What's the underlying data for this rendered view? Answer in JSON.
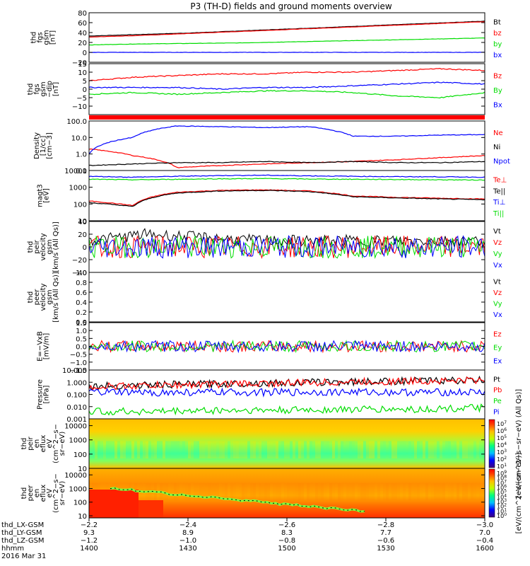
{
  "title": "P3 (TH-D) fields and ground moments overview",
  "colors": {
    "black": "#000000",
    "red": "#ff0000",
    "green": "#00dd00",
    "blue": "#0000ff",
    "spec_bg": "#ffbf00",
    "spec_hot": "#ff3300"
  },
  "chart_data": [
    {
      "type": "line",
      "ylabel": [
        "thd",
        "fgs",
        "gsm",
        "[nT]"
      ],
      "yticks": [
        "80",
        "60",
        "40",
        "20",
        "0",
        "−20"
      ],
      "ylim": [
        -20,
        80
      ],
      "series": [
        {
          "name": "Bt",
          "color": "#000000",
          "values": [
            33,
            36,
            39,
            43,
            47,
            51,
            55,
            59,
            63
          ]
        },
        {
          "name": "bz",
          "color": "#ff0000",
          "values": [
            31,
            34,
            38,
            42,
            46,
            50,
            54,
            58,
            62
          ]
        },
        {
          "name": "by",
          "color": "#00dd00",
          "values": [
            15,
            17,
            18,
            19,
            21,
            23,
            25,
            27,
            29
          ]
        },
        {
          "name": "bx",
          "color": "#0000ff",
          "values": [
            0,
            0,
            0,
            0,
            0,
            0,
            0,
            0,
            0
          ]
        }
      ]
    },
    {
      "type": "line",
      "ylabel": [
        "thd",
        "fgs",
        "gsm",
        "−dip",
        "[nT]"
      ],
      "yticks": [
        "15",
        "10",
        "5",
        "0",
        "−5",
        "−10"
      ],
      "ylim": [
        -15,
        15
      ],
      "series": [
        {
          "name": "Bz",
          "color": "#ff0000",
          "values": [
            5,
            7,
            8,
            9,
            9,
            10,
            10,
            11,
            12,
            11
          ]
        },
        {
          "name": "By",
          "color": "#00dd00",
          "values": [
            -3,
            -2,
            -3,
            -2,
            -1,
            -1,
            -2,
            -4,
            -5,
            -2
          ]
        },
        {
          "name": "Bx",
          "color": "#0000ff",
          "values": [
            1,
            1,
            1,
            0,
            1,
            1,
            2,
            3,
            4,
            3
          ]
        }
      ]
    },
    {
      "type": "line",
      "log": true,
      "ylabel": [
        "Density",
        "[1/cc]",
        "[cm−3]"
      ],
      "yticks": [
        "100.0",
        "10.0",
        "1.0",
        "0.1"
      ],
      "ylim": [
        0.1,
        100
      ],
      "series": [
        {
          "name": "Ne",
          "color": "#ff0000",
          "values": [
            2,
            0.8,
            0.15,
            0.2,
            0.25,
            0.3,
            0.35,
            0.45,
            0.6,
            0.8
          ]
        },
        {
          "name": "Ni",
          "color": "#000000",
          "values": [
            0.2,
            0.25,
            0.3,
            0.3,
            0.35,
            0.3,
            0.35,
            0.3,
            0.3,
            0.35
          ]
        },
        {
          "name": "Npot",
          "color": "#0000ff",
          "values": [
            1,
            10,
            50,
            45,
            40,
            45,
            12,
            12,
            14,
            15
          ]
        }
      ]
    },
    {
      "type": "line",
      "log": true,
      "ylabel": [
        "magt3",
        "[eV]"
      ],
      "yticks": [
        "10000",
        "1000",
        "100",
        "10"
      ],
      "ylim": [
        10,
        10000
      ],
      "series": [
        {
          "name": "Te⊥",
          "color": "#ff0000",
          "values": [
            150,
            80,
            500,
            650,
            700,
            600,
            300,
            250,
            220,
            200
          ]
        },
        {
          "name": "Te||",
          "color": "#000000",
          "values": [
            120,
            70,
            450,
            600,
            650,
            550,
            270,
            230,
            200,
            180
          ]
        },
        {
          "name": "Ti⊥",
          "color": "#0000ff",
          "values": [
            4500,
            4000,
            4500,
            5000,
            5200,
            4800,
            4500,
            4300,
            4200,
            4000
          ]
        },
        {
          "name": "Ti||",
          "color": "#00dd00",
          "values": [
            3000,
            2800,
            3000,
            3200,
            3300,
            3100,
            3000,
            2900,
            2800,
            2700
          ]
        }
      ]
    },
    {
      "type": "line",
      "ylabel": [
        "thd",
        "peir",
        "velocity",
        "gsm",
        "[km/s (All Qs)]"
      ],
      "yticks": [
        "40",
        "20",
        "0",
        "−20",
        "−40"
      ],
      "ylim": [
        -40,
        40
      ],
      "series": [
        {
          "name": "Vt",
          "color": "#000000",
          "values": [
            10,
            20,
            15,
            10,
            10,
            10,
            10,
            10
          ]
        },
        {
          "name": "Vz",
          "color": "#ff0000",
          "values": [
            0,
            0,
            0,
            0,
            0,
            0,
            0,
            0
          ]
        },
        {
          "name": "Vy",
          "color": "#00dd00",
          "values": [
            0,
            0,
            0,
            0,
            0,
            0,
            0,
            0
          ]
        },
        {
          "name": "Vx",
          "color": "#0000ff",
          "values": [
            0,
            0,
            0,
            0,
            0,
            0,
            0,
            0
          ]
        }
      ]
    },
    {
      "type": "line",
      "ylabel": [
        "thd",
        "peer",
        "velocity",
        "gsm",
        "[km/s (All Qs)]"
      ],
      "yticks": [
        "1.0",
        "0.8",
        "0.6",
        "0.4",
        "0.2",
        "0.0"
      ],
      "ylim": [
        0,
        1
      ],
      "series": [
        {
          "name": "Vt",
          "color": "#000000",
          "values": []
        },
        {
          "name": "Vz",
          "color": "#ff0000",
          "values": []
        },
        {
          "name": "Vy",
          "color": "#00dd00",
          "values": []
        },
        {
          "name": "Vx",
          "color": "#0000ff",
          "values": []
        }
      ]
    },
    {
      "type": "line",
      "ylabel": [
        "E=−VxB",
        "[mV/m]"
      ],
      "yticks": [
        "1.5",
        "1.0",
        "0.5",
        "0.0",
        "−0.5",
        "−1.0",
        "−1.5"
      ],
      "ylim": [
        -1.5,
        1.5
      ],
      "series": [
        {
          "name": "Ez",
          "color": "#ff0000",
          "values": [
            0,
            0,
            0,
            0,
            0,
            0,
            0,
            0
          ]
        },
        {
          "name": "Ey",
          "color": "#00dd00",
          "values": [
            0,
            0,
            0,
            0,
            0,
            0,
            0,
            0
          ]
        },
        {
          "name": "Ex",
          "color": "#0000ff",
          "values": [
            0,
            0,
            0,
            0,
            0,
            0,
            0,
            0
          ]
        }
      ]
    },
    {
      "type": "line",
      "log": true,
      "ylabel": [
        "Pressure",
        "[nPa]"
      ],
      "yticks": [
        "10.000",
        "1.000",
        "0.100",
        "0.010",
        "0.001"
      ],
      "ylim": [
        0.001,
        10
      ],
      "series": [
        {
          "name": "Pt",
          "color": "#000000",
          "values": [
            0.45,
            0.6,
            0.75,
            0.9,
            1.1,
            1.3,
            1.5
          ]
        },
        {
          "name": "Pb",
          "color": "#ff0000",
          "values": [
            0.42,
            0.55,
            0.7,
            0.85,
            1.05,
            1.25,
            1.45
          ]
        },
        {
          "name": "Pe",
          "color": "#00dd00",
          "values": [
            0.004,
            0.004,
            0.005,
            0.005,
            0.006,
            0.006,
            0.008
          ]
        },
        {
          "name": "Pi",
          "color": "#0000ff",
          "values": [
            0.15,
            0.14,
            0.15,
            0.15,
            0.16,
            0.15,
            0.15
          ]
        }
      ]
    },
    {
      "type": "heatmap",
      "log": true,
      "ylabel": [
        "thd",
        "peir",
        "en",
        "eflux",
        "eV",
        "(cm^2−s−",
        "sr−eV)"
      ],
      "yticks": [
        "10000",
        "1000",
        "100",
        "10"
      ],
      "ylim": [
        10,
        30000
      ],
      "colorbar": {
        "ticks": [
          "10^7",
          "10^6",
          "10^5",
          "10^4",
          "10^3",
          "10^2",
          "10^1"
        ],
        "label": "[eV/(cm^2−s−sr−eV) (All Qs)]"
      }
    },
    {
      "type": "heatmap",
      "log": true,
      "ylabel": [
        "thd",
        "peer",
        "en",
        "eflux",
        "eV",
        "(cm^2−s−",
        "sr−eV)"
      ],
      "yticks": [
        "10000",
        "1000",
        "100",
        "10"
      ],
      "ylim": [
        7,
        30000
      ],
      "colorbar": {
        "ticks": [
          "10^9",
          "10^8",
          "10^7",
          "10^6",
          "10^5",
          "10^4",
          "10^3",
          "10^2",
          "10^1",
          "10^0"
        ],
        "label": "[eV/(cm^2−s−sr−eV)]"
      }
    }
  ],
  "xaxis": {
    "rows": [
      {
        "label": "thd_LX-GSM",
        "values": [
          "−2.2",
          "−2.4",
          "−2.6",
          "−2.8",
          "−3.0"
        ]
      },
      {
        "label": "thd_LY-GSM",
        "values": [
          "9.3",
          "8.9",
          "8.3",
          "7.7",
          "7.0"
        ]
      },
      {
        "label": "thd_LZ-GSM",
        "values": [
          "−1.2",
          "−1.0",
          "−0.8",
          "−0.6",
          "−0.4"
        ]
      },
      {
        "label": "hhmm",
        "values": [
          "1400",
          "1430",
          "1500",
          "1530",
          "1600"
        ]
      }
    ],
    "date": "2016 Mar 31"
  }
}
